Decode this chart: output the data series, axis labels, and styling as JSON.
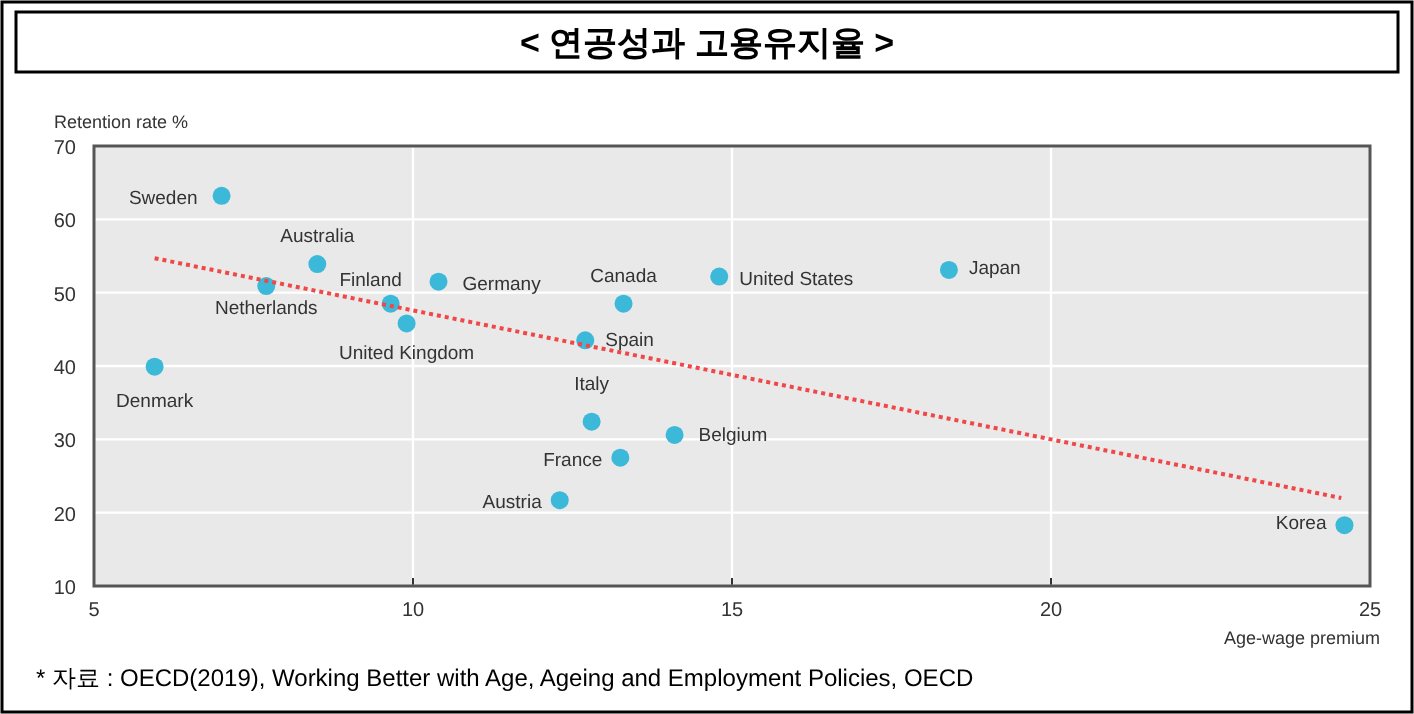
{
  "chart_data": {
    "type": "scatter",
    "title": "< 연공성과 고용유지율 >",
    "xlabel": "Age-wage premium",
    "ylabel": "Retention rate %",
    "series": [
      {
        "type": "scatter",
        "marker": "circle",
        "color": "#3cb9d9",
        "x": [
          7.0,
          8.5,
          7.7,
          9.65,
          10.4,
          9.9,
          5.95,
          13.3,
          12.7,
          12.8,
          14.1,
          13.25,
          12.3,
          14.8,
          18.4,
          24.6
        ],
        "values": [
          63.2,
          53.9,
          50.9,
          48.5,
          51.5,
          45.8,
          39.9,
          48.5,
          43.5,
          32.4,
          30.6,
          27.5,
          21.7,
          52.2,
          53.1,
          18.3
        ]
      },
      {
        "type": "line",
        "color": "#f04848",
        "line_style": "dotted",
        "x": [
          5.95,
          24.55
        ],
        "values": [
          54.7,
          22.0
        ]
      }
    ],
    "annotations": [
      {
        "text": "Sweden",
        "x": 7.0,
        "y": 63.2
      },
      {
        "text": "Australia",
        "x": 8.5,
        "y": 53.9
      },
      {
        "text": "Netherlands",
        "x": 7.7,
        "y": 50.9
      },
      {
        "text": "Finland",
        "x": 9.65,
        "y": 48.5
      },
      {
        "text": "Germany",
        "x": 10.4,
        "y": 51.5
      },
      {
        "text": "United Kingdom",
        "x": 9.9,
        "y": 45.8
      },
      {
        "text": "Denmark",
        "x": 5.95,
        "y": 39.9
      },
      {
        "text": "Canada",
        "x": 13.3,
        "y": 48.5
      },
      {
        "text": "Spain",
        "x": 12.7,
        "y": 43.5
      },
      {
        "text": "Italy",
        "x": 12.8,
        "y": 32.4
      },
      {
        "text": "Belgium",
        "x": 14.1,
        "y": 30.6
      },
      {
        "text": "France",
        "x": 13.25,
        "y": 27.5
      },
      {
        "text": "Austria",
        "x": 12.3,
        "y": 21.7
      },
      {
        "text": "United States",
        "x": 14.8,
        "y": 52.2
      },
      {
        "text": "Japan",
        "x": 18.4,
        "y": 53.1
      },
      {
        "text": "Korea",
        "x": 24.6,
        "y": 18.3
      },
      "* 자료 : OECD(2019), Working Better with Age, Ageing and Employment Policies, OECD"
    ],
    "xlim": [
      5,
      25
    ],
    "ylim": [
      10,
      70
    ],
    "xticks": [
      5,
      10,
      15,
      20,
      25
    ],
    "yticks": [
      10,
      20,
      30,
      40,
      50,
      60,
      70
    ],
    "grid": true
  }
}
